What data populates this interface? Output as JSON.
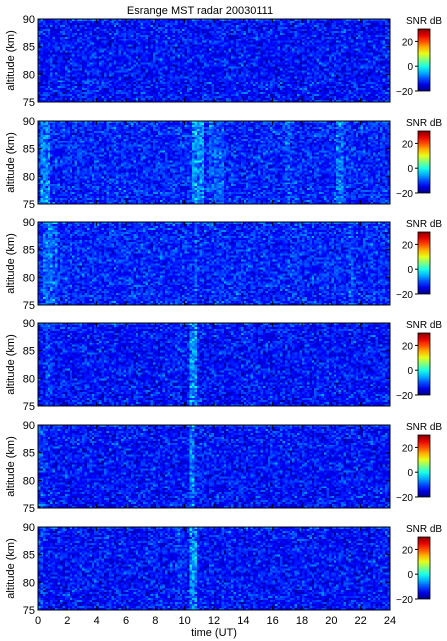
{
  "chart_data": {
    "type": "heatmap",
    "title": "Esrange MST radar 20030111",
    "xlabel": "time (UT)",
    "ylabel": "altitude (km)",
    "x_ticks": [
      "0",
      "2",
      "4",
      "6",
      "8",
      "10",
      "12",
      "14",
      "16",
      "18",
      "20",
      "22",
      "24"
    ],
    "y_ticks": [
      "75",
      "80",
      "85",
      "90"
    ],
    "xlim": [
      0,
      24
    ],
    "ylim": [
      75,
      90
    ],
    "colorbar": {
      "label": "SNR dB",
      "ticks": [
        "20",
        "0",
        "−20"
      ],
      "range": [
        -20,
        30
      ],
      "colormap": "jet"
    },
    "panels": [
      {
        "name": "panel-1",
        "base_snr": -13,
        "bands": []
      },
      {
        "name": "panel-2",
        "base_snr": -12,
        "bands": [
          [
            0.1,
            0.9,
            5
          ],
          [
            10.5,
            11.3,
            6
          ],
          [
            11.6,
            12.6,
            3
          ],
          [
            16.9,
            17.3,
            2
          ],
          [
            20.3,
            20.9,
            4
          ]
        ]
      },
      {
        "name": "panel-3",
        "base_snr": -12,
        "bands": [
          [
            0.4,
            1.3,
            4
          ],
          [
            10.6,
            10.9,
            3
          ],
          [
            21.2,
            21.5,
            2
          ]
        ]
      },
      {
        "name": "panel-4",
        "base_snr": -13,
        "bands": [
          [
            0.5,
            1.0,
            2
          ],
          [
            9.5,
            9.8,
            1
          ],
          [
            10.4,
            10.8,
            7
          ]
        ]
      },
      {
        "name": "panel-5",
        "base_snr": -13,
        "bands": [
          [
            0.0,
            0.5,
            2
          ],
          [
            10.3,
            10.6,
            6
          ]
        ]
      },
      {
        "name": "panel-6",
        "base_snr": -13,
        "bands": [
          [
            0.0,
            0.4,
            2
          ],
          [
            9.4,
            9.8,
            2
          ],
          [
            10.3,
            10.8,
            7
          ]
        ]
      }
    ]
  }
}
